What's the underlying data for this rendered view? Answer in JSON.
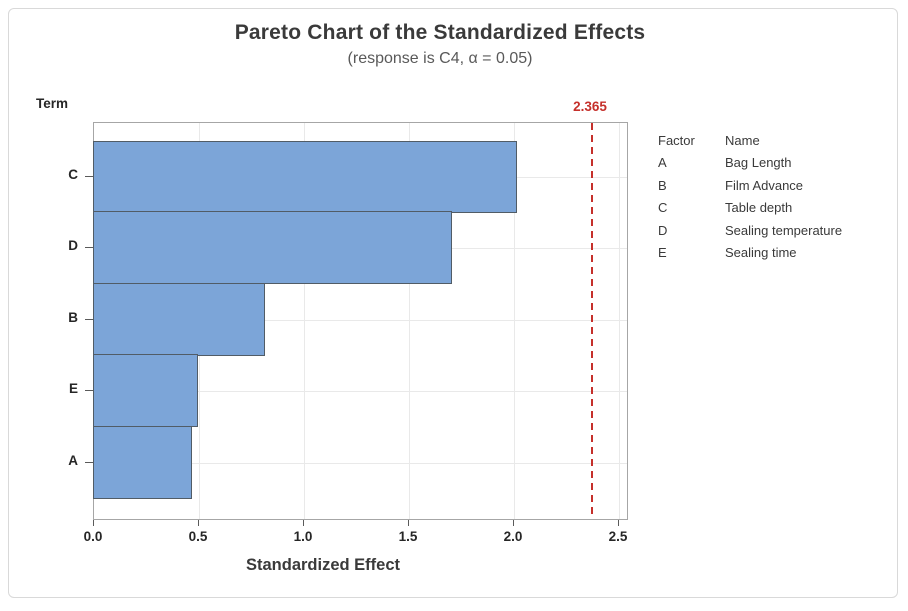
{
  "title": "Pareto Chart of the Standardized Effects",
  "subtitle": "(response is C4, α = 0.05)",
  "axes": {
    "y_title": "Term",
    "x_title": "Standardized Effect"
  },
  "reference_line": {
    "label": "2.365",
    "value": 2.365
  },
  "chart_data": {
    "type": "bar",
    "orientation": "horizontal",
    "title": "Pareto Chart of the Standardized Effects",
    "subtitle": "(response is C4, α = 0.05)",
    "xlabel": "Standardized Effect",
    "ylabel": "Term",
    "categories": [
      "C",
      "D",
      "B",
      "E",
      "A"
    ],
    "values": [
      2.02,
      1.71,
      0.82,
      0.5,
      0.47
    ],
    "x_ticks": [
      "0.0",
      "0.5",
      "1.0",
      "1.5",
      "2.0",
      "2.5"
    ],
    "xlim": [
      0,
      2.55
    ],
    "reference_value": 2.365,
    "grid": "vertical gridlines at x ticks plus light horizontal line at each category center",
    "legend_position": "right"
  },
  "legend": {
    "factor_header": "Factor",
    "name_header": "Name",
    "rows": [
      {
        "factor": "A",
        "name": "Bag Length"
      },
      {
        "factor": "B",
        "name": "Film Advance"
      },
      {
        "factor": "C",
        "name": "Table depth"
      },
      {
        "factor": "D",
        "name": "Sealing temperature"
      },
      {
        "factor": "E",
        "name": "Sealing time"
      }
    ]
  },
  "colors": {
    "bar_fill": "#7CA5D8",
    "bar_border": "#515C66",
    "reference_red": "#C5302B",
    "plot_border": "#A6A6A6",
    "gridline": "#E9E9E9",
    "tick": "#5A5A5A",
    "title_text": "#3A3A3A",
    "subtitle_text": "#595959",
    "label_text": "#262626",
    "frame_border": "#D9D9D9"
  }
}
